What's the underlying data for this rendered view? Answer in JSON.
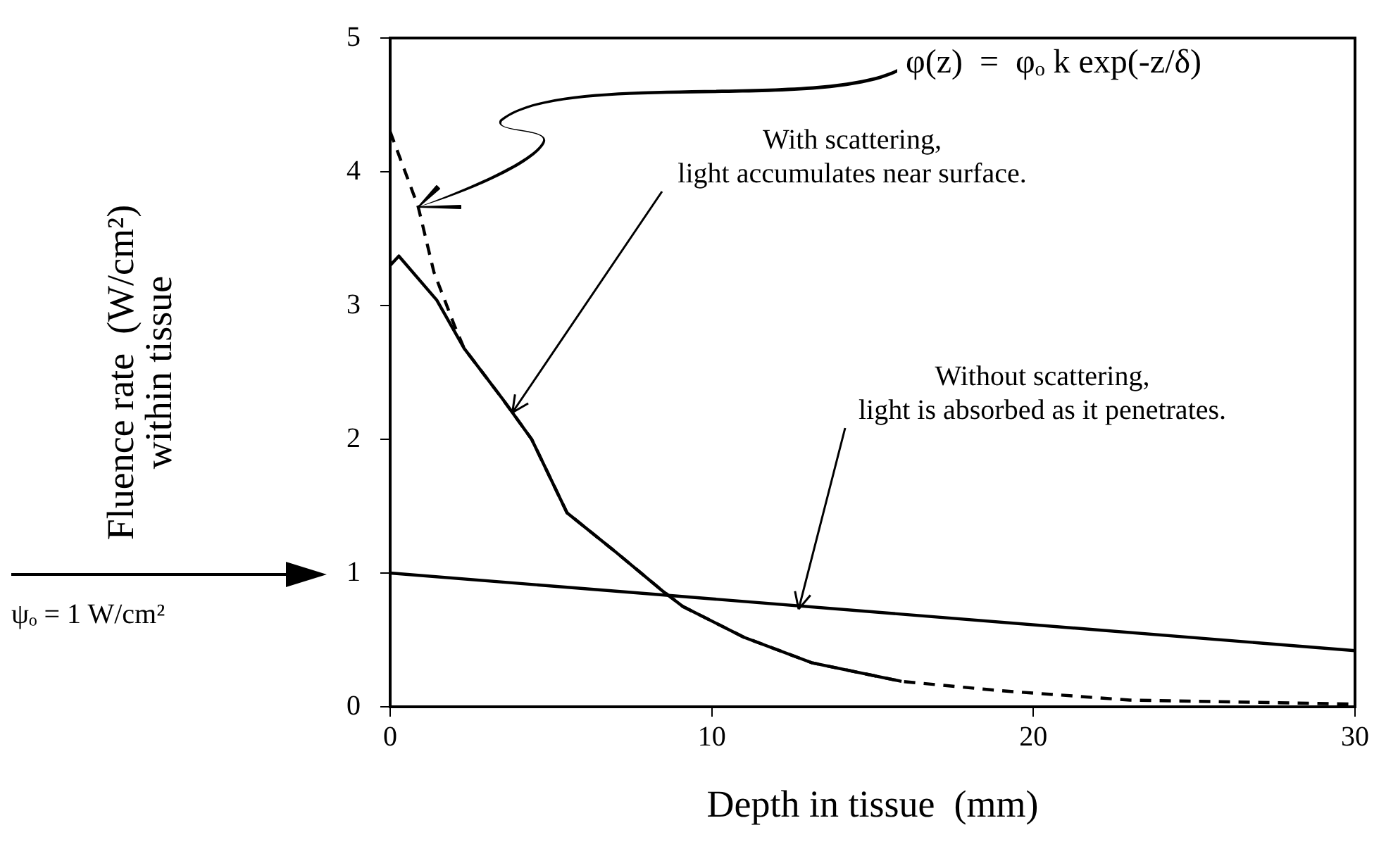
{
  "chart_data": {
    "type": "line",
    "xlabel": "Depth in tissue  (mm)",
    "ylabel": "Fluence rate  (W/cm²)\nwithin tissue",
    "xlim": [
      0,
      30
    ],
    "ylim": [
      0,
      5
    ],
    "xticks": [
      0,
      10,
      20,
      30
    ],
    "yticks": [
      0,
      1,
      2,
      3,
      4,
      5
    ],
    "grid": false,
    "legend": false,
    "marker": "none",
    "series": [
      {
        "color": "#000000",
        "line_style": "dashed",
        "x": [
          0,
          0.87,
          1.36,
          2.0,
          2.3,
          3.5,
          4.4,
          5.5,
          7.0,
          8.45,
          9.1,
          11,
          13.1,
          15.9,
          19,
          23,
          30
        ],
        "values": [
          4.3,
          3.74,
          3.25,
          2.85,
          2.68,
          2.3,
          2.0,
          1.45,
          1.16,
          0.87,
          0.75,
          0.52,
          0.33,
          0.19,
          0.12,
          0.05,
          0.02
        ]
      },
      {
        "color": "#000000",
        "line_style": "solid",
        "x": [
          0,
          0.27,
          1.45,
          2.3,
          3.5,
          4.4,
          5.5,
          7.0,
          8.45,
          9.1,
          11,
          13.1,
          15.9
        ],
        "values": [
          3.3,
          3.37,
          3.04,
          2.68,
          2.3,
          2.0,
          1.45,
          1.16,
          0.87,
          0.75,
          0.52,
          0.33,
          0.19
        ]
      },
      {
        "color": "#000000",
        "line_style": "solid",
        "x": [
          0,
          30
        ],
        "values": [
          1,
          0.42
        ]
      }
    ],
    "annotations": [
      "φ(z)  =  φₒ k exp(-z/δ)",
      {
        "text": "With scattering,\nlight accumulates near surface.",
        "x": 3.8,
        "y": 2.2
      },
      {
        "text": "Without scattering,\nlight is absorbed as it penetrates.",
        "x": 12.7,
        "y": 0.73
      },
      "ψₒ = 1 W/cm²"
    ]
  }
}
